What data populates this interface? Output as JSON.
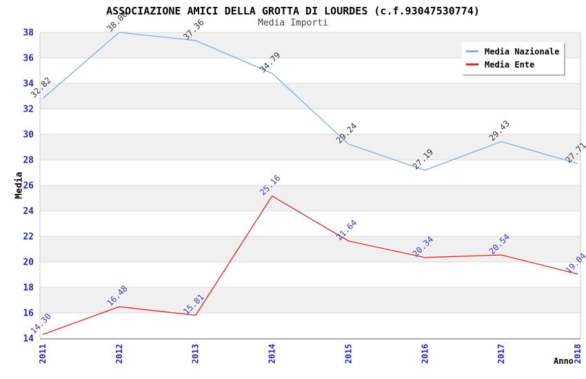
{
  "page": {
    "title": "ASSOCIAZIONE AMICI DELLA GROTTA DI LOURDES (c.f.93047530774)",
    "subtitle": "Media Importi"
  },
  "chart_data": {
    "type": "line",
    "title": "ASSOCIAZIONE AMICI DELLA GROTTA DI LOURDES (c.f.93047530774)",
    "subtitle": "Media Importi",
    "categories": [
      "2011",
      "2012",
      "2013",
      "2014",
      "2015",
      "2016",
      "2017",
      "2018"
    ],
    "series": [
      {
        "name": "Media Nazionale",
        "color": "#7dafe0",
        "label_color": "#333333",
        "values": [
          32.82,
          38.0,
          37.36,
          34.79,
          29.24,
          27.19,
          29.43,
          27.71
        ]
      },
      {
        "name": "Media Ente",
        "color": "#ee1f1f",
        "label_color": "#3b3bc0",
        "values": [
          14.3,
          16.48,
          15.81,
          25.16,
          21.64,
          20.34,
          20.54,
          19.04
        ]
      }
    ],
    "xlabel": "Anno",
    "ylabel": "Media",
    "ylim": [
      14,
      38
    ],
    "ytick_step": 2,
    "value_label_decimals": 2,
    "grid": "horizontal-bands",
    "legend_position": "top-right",
    "colors": {
      "tick_label": "#2323c8",
      "band": "#f0f0f0",
      "grid_line": "#dadada",
      "axis_line": "#a0a0a0",
      "plot_border": "#c9c9c9"
    }
  }
}
